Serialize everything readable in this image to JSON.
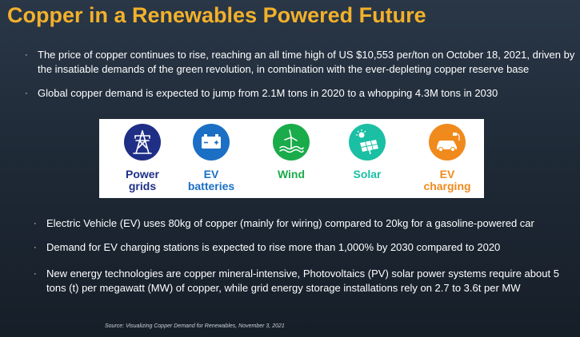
{
  "slide": {
    "title": "Copper in a Renewables Powered Future",
    "bullets_top": [
      "The price of copper continues to rise, reaching an all time high of US $10,553 per/ton on October 18, 2021, driven by the insatiable demands of the green revolution, in combination with the ever-depleting copper reserve base",
      "Global copper demand is expected to jump from 2.1M tons in 2020 to a whopping 4.3M tons in 2030"
    ],
    "bullets_bottom": [
      "Electric Vehicle (EV) uses 80kg of copper (mainly for wiring) compared to 20kg for a gasoline-powered car",
      "Demand for EV charging stations is expected to rise more than 1,000% by 2030 compared to 2020",
      "New energy technologies are copper mineral-intensive, Photovoltaics (PV) solar power systems require about 5 tons (t) per megawatt (MW) of copper, while grid energy storage installations rely on 2.7 to 3.6t per MW"
    ],
    "bullet_marker": "·",
    "source": "Source: Visualizing Copper Demand for Renewables, November 3, 2021"
  },
  "icons": [
    {
      "line1": "Power",
      "line2": "grids",
      "icon": "power-tower-icon",
      "circle_color": "#1f2f86",
      "label_color": "#1f2f86"
    },
    {
      "line1": "EV",
      "line2": "batteries",
      "icon": "battery-icon",
      "circle_color": "#1b6fc4",
      "label_color": "#1b6fc4"
    },
    {
      "line1": "Wind",
      "line2": "",
      "icon": "wind-turbine-icon",
      "circle_color": "#1aab4a",
      "label_color": "#1aab4a"
    },
    {
      "line1": "Solar",
      "line2": "",
      "icon": "solar-panel-icon",
      "circle_color": "#1bbfa4",
      "label_color": "#1bbfa4"
    },
    {
      "line1": "EV",
      "line2": "charging",
      "icon": "ev-charging-icon",
      "circle_color": "#f08a1c",
      "label_color": "#f08a1c"
    }
  ],
  "colors": {
    "title": "#f2b12b",
    "text": "#ffffff"
  }
}
